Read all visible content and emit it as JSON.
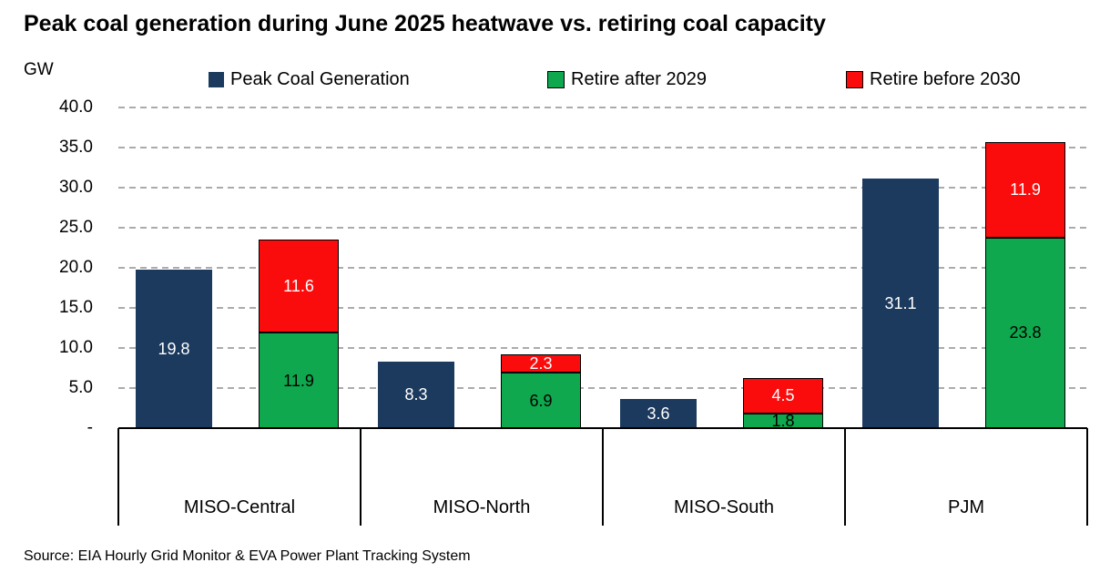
{
  "title": "Peak coal generation during June 2025 heatwave vs. retiring coal capacity",
  "y_axis_unit": "GW",
  "source_note": "Source: EIA Hourly Grid Monitor & EVA Power Plant Tracking System",
  "colors": {
    "peak_bar": "#1C3A5E",
    "retire_after_bar": "#0FA84E",
    "retire_before_bar": "#FB0C0C",
    "gridline": "#ABABAB",
    "axis_line": "#000000"
  },
  "chart_data": {
    "type": "bar",
    "subtype": "grouped-with-stacked-column",
    "title": "Peak coal generation during June 2025 heatwave vs. retiring coal capacity",
    "ylabel": "GW",
    "ylim": [
      0,
      40
    ],
    "ytick_step": 5,
    "ytick_labels": [
      "-",
      "5.0",
      "10.0",
      "15.0",
      "20.0",
      "25.0",
      "30.0",
      "35.0",
      "40.0"
    ],
    "grid": "horizontal-dashed",
    "legend_position": "top",
    "categories": [
      "MISO-Central",
      "MISO-North",
      "MISO-South",
      "PJM"
    ],
    "series": [
      {
        "name": "Peak Coal Generation",
        "stack": "peak",
        "color": "#1C3A5E",
        "label_color": "#FFFFFF",
        "values": [
          19.8,
          8.3,
          3.6,
          31.1
        ]
      },
      {
        "name": "Retire after 2029",
        "stack": "retiring",
        "color": "#0FA84E",
        "label_color": "#000000",
        "values": [
          11.9,
          6.9,
          1.8,
          23.8
        ]
      },
      {
        "name": "Retire before 2030",
        "stack": "retiring",
        "color": "#FB0C0C",
        "label_color": "#FFFFFF",
        "values": [
          11.6,
          2.3,
          4.5,
          11.9
        ]
      }
    ]
  }
}
